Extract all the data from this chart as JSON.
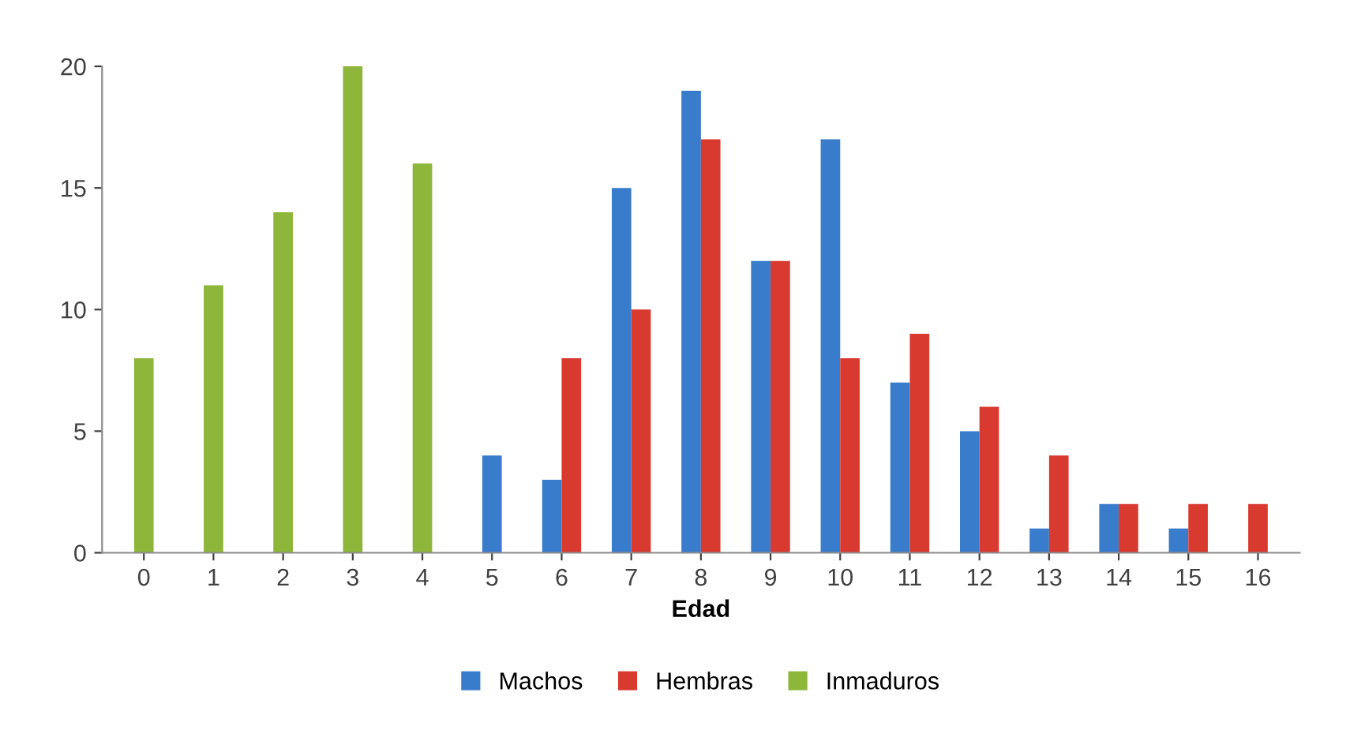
{
  "chart_data": {
    "type": "bar",
    "xlabel": "Edad",
    "categories": [
      "0",
      "1",
      "2",
      "3",
      "4",
      "5",
      "6",
      "7",
      "8",
      "9",
      "10",
      "11",
      "12",
      "13",
      "14",
      "15",
      "16"
    ],
    "series": [
      {
        "name": "Machos",
        "color": "#3a7ccc",
        "values": [
          null,
          null,
          null,
          null,
          null,
          4,
          3,
          15,
          19,
          12,
          17,
          7,
          5,
          1,
          2,
          1,
          null
        ]
      },
      {
        "name": "Hembras",
        "color": "#d83a30",
        "values": [
          null,
          null,
          null,
          null,
          null,
          null,
          8,
          10,
          17,
          12,
          8,
          9,
          6,
          4,
          2,
          2,
          2
        ]
      },
      {
        "name": "Inmaduros",
        "color": "#8db63a",
        "values": [
          8,
          11,
          14,
          20,
          16,
          null,
          null,
          null,
          null,
          null,
          null,
          null,
          null,
          null,
          null,
          null,
          null
        ]
      }
    ],
    "ylim": [
      0,
      20
    ],
    "yticks": [
      0,
      5,
      10,
      15,
      20
    ],
    "grid": false,
    "legend": "bottom"
  }
}
